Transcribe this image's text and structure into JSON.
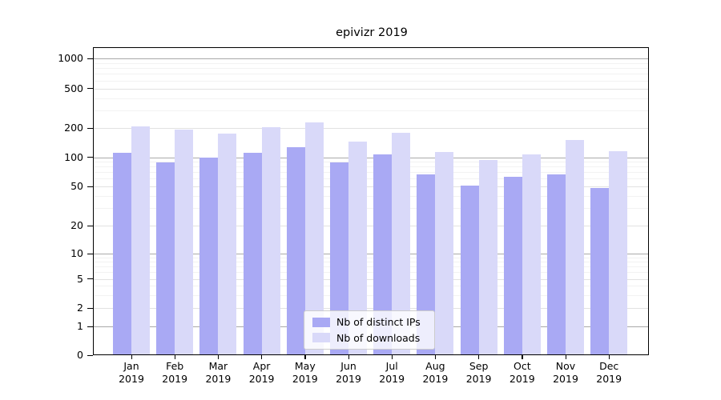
{
  "title": "epivizr 2019",
  "chart_data": {
    "type": "bar",
    "title": "epivizr 2019",
    "y_scale": "symlog",
    "grid": true,
    "legend_position": "lower center inside plot",
    "categories": [
      "Jan 2019",
      "Feb 2019",
      "Mar 2019",
      "Apr 2019",
      "May 2019",
      "Jun 2019",
      "Jul 2019",
      "Aug 2019",
      "Sep 2019",
      "Oct 2019",
      "Nov 2019",
      "Dec 2019"
    ],
    "series": [
      {
        "name": "Nb of distinct IPs",
        "color": "#a9a9f4",
        "values": [
          112,
          88,
          99,
          111,
          127,
          89,
          107,
          67,
          51,
          63,
          67,
          48
        ]
      },
      {
        "name": "Nb of downloads",
        "color": "#d9d9f9",
        "values": [
          208,
          193,
          174,
          203,
          228,
          145,
          179,
          113,
          94,
          106,
          150,
          116
        ]
      }
    ],
    "y_ticks": [
      0,
      1,
      2,
      5,
      10,
      20,
      50,
      100,
      200,
      500,
      1000
    ],
    "ylim": [
      0,
      1280
    ],
    "xlabel": "",
    "ylabel": ""
  },
  "colors": {
    "bar_dark": "#a9a9f4",
    "bar_light": "#d9d9f9",
    "grid_power_of_ten": "#a9a9a9",
    "grid_labeled": "#e2e2e2",
    "grid_minor": "#f2f2f2",
    "axis": "#000000",
    "legend_border": "#cccccc"
  },
  "legend": {
    "items": [
      {
        "label": "Nb of distinct IPs"
      },
      {
        "label": "Nb of downloads"
      }
    ]
  }
}
